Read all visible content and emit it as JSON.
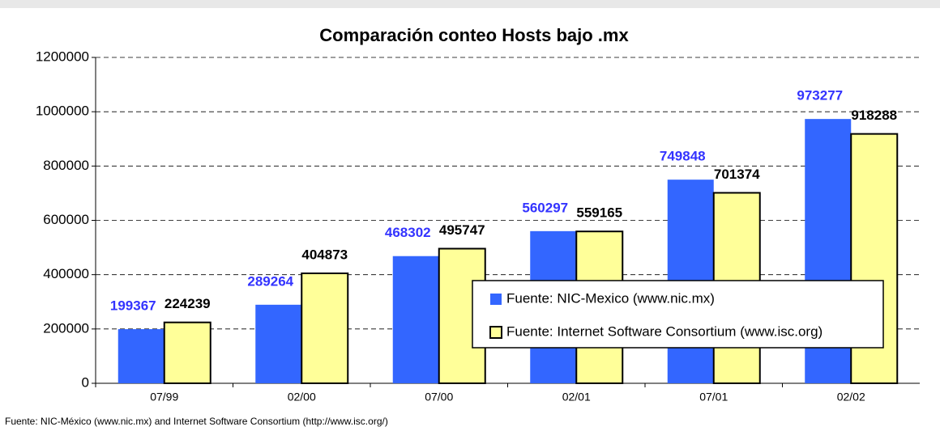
{
  "chart_data": {
    "type": "bar",
    "title": "Comparación conteo Hosts bajo .mx",
    "source": "Fuente: NIC-México (www.nic.mx) and Internet Software Consortium  (http://www.isc.org/)",
    "categories": [
      "07/99",
      "02/00",
      "07/00",
      "02/01",
      "07/01",
      "02/02"
    ],
    "series": [
      {
        "name": "Fuente: NIC-Mexico (www.nic.mx)",
        "color": "#3366ff",
        "label_color": "#3333ff",
        "values": [
          199367,
          289264,
          468302,
          560297,
          749848,
          973277
        ]
      },
      {
        "name": "Fuente: Internet Software Consortium (www.isc.org)",
        "color": "#ffff99",
        "label_color": "#000000",
        "values": [
          224239,
          404873,
          495747,
          559165,
          701374,
          918288
        ]
      }
    ],
    "ylim": [
      0,
      1200000
    ],
    "yticks": [
      0,
      200000,
      400000,
      600000,
      800000,
      1000000,
      1200000
    ],
    "grid": true
  }
}
